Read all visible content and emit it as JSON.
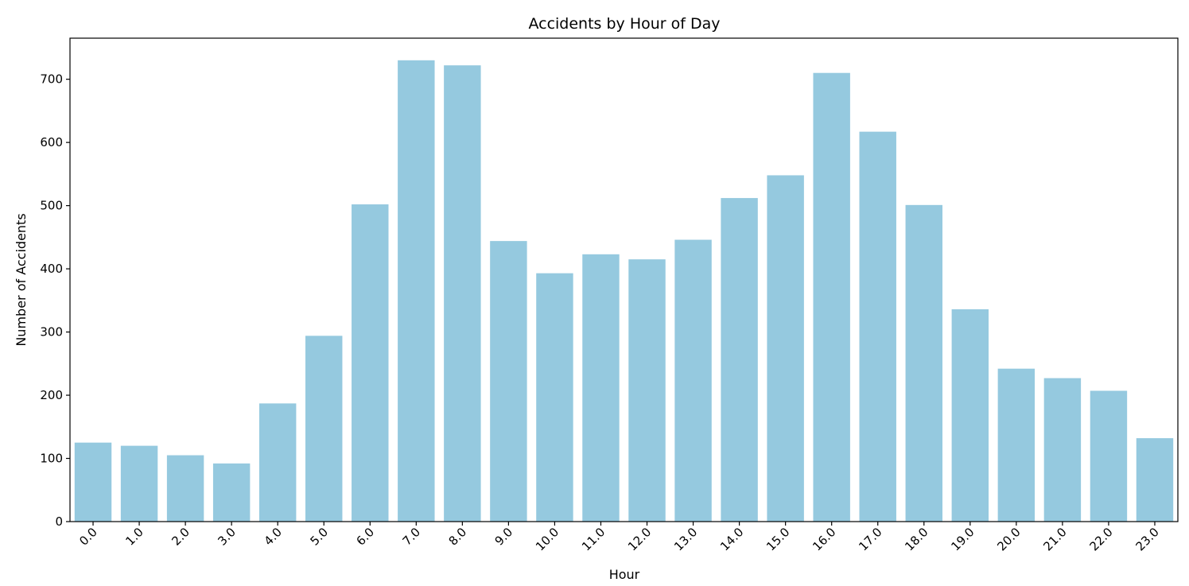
{
  "chart_data": {
    "type": "bar",
    "title": "Accidents by Hour of Day",
    "xlabel": "Hour",
    "ylabel": "Number of Accidents",
    "categories": [
      "0.0",
      "1.0",
      "2.0",
      "3.0",
      "4.0",
      "5.0",
      "6.0",
      "7.0",
      "8.0",
      "9.0",
      "10.0",
      "11.0",
      "12.0",
      "13.0",
      "14.0",
      "15.0",
      "16.0",
      "17.0",
      "18.0",
      "19.0",
      "20.0",
      "21.0",
      "22.0",
      "23.0"
    ],
    "values": [
      125,
      120,
      105,
      92,
      187,
      294,
      502,
      730,
      722,
      444,
      393,
      423,
      415,
      446,
      512,
      548,
      710,
      617,
      501,
      336,
      242,
      227,
      207,
      132
    ],
    "ylim": [
      0,
      765
    ],
    "yticks": [
      0,
      100,
      200,
      300,
      400,
      500,
      600,
      700
    ],
    "bar_color": "#95c9df",
    "grid": false,
    "x_tick_rotation": -45
  }
}
